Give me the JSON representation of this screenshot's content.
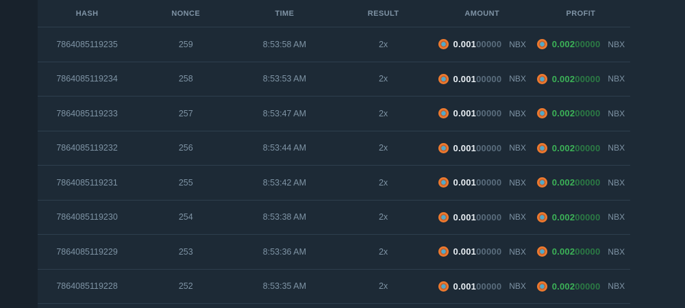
{
  "table": {
    "columns": [
      {
        "key": "hash",
        "label": "HASH"
      },
      {
        "key": "nonce",
        "label": "NONCE"
      },
      {
        "key": "time",
        "label": "TIME"
      },
      {
        "key": "result",
        "label": "RESULT"
      },
      {
        "key": "amount",
        "label": "AMOUNT"
      },
      {
        "key": "profit",
        "label": "PROFIT"
      }
    ],
    "currency": "NBX",
    "rows": [
      {
        "hash": "7864085119235",
        "nonce": "259",
        "time": "8:53:58 AM",
        "result": "2x",
        "amount_main": "0.001",
        "amount_zeros": "00000",
        "profit_main": "0.002",
        "profit_zeros": "00000"
      },
      {
        "hash": "7864085119234",
        "nonce": "258",
        "time": "8:53:53 AM",
        "result": "2x",
        "amount_main": "0.001",
        "amount_zeros": "00000",
        "profit_main": "0.002",
        "profit_zeros": "00000"
      },
      {
        "hash": "7864085119233",
        "nonce": "257",
        "time": "8:53:47 AM",
        "result": "2x",
        "amount_main": "0.001",
        "amount_zeros": "00000",
        "profit_main": "0.002",
        "profit_zeros": "00000"
      },
      {
        "hash": "7864085119232",
        "nonce": "256",
        "time": "8:53:44 AM",
        "result": "2x",
        "amount_main": "0.001",
        "amount_zeros": "00000",
        "profit_main": "0.002",
        "profit_zeros": "00000"
      },
      {
        "hash": "7864085119231",
        "nonce": "255",
        "time": "8:53:42 AM",
        "result": "2x",
        "amount_main": "0.001",
        "amount_zeros": "00000",
        "profit_main": "0.002",
        "profit_zeros": "00000"
      },
      {
        "hash": "7864085119230",
        "nonce": "254",
        "time": "8:53:38 AM",
        "result": "2x",
        "amount_main": "0.001",
        "amount_zeros": "00000",
        "profit_main": "0.002",
        "profit_zeros": "00000"
      },
      {
        "hash": "7864085119229",
        "nonce": "253",
        "time": "8:53:36 AM",
        "result": "2x",
        "amount_main": "0.001",
        "amount_zeros": "00000",
        "profit_main": "0.002",
        "profit_zeros": "00000"
      },
      {
        "hash": "7864085119228",
        "nonce": "252",
        "time": "8:53:35 AM",
        "result": "2x",
        "amount_main": "0.001",
        "amount_zeros": "00000",
        "profit_main": "0.002",
        "profit_zeros": "00000"
      }
    ]
  },
  "icons": {
    "coin": "nbx-coin-icon"
  },
  "colors": {
    "page_bg": "#18222c",
    "table_bg": "#1d2a36",
    "divider": "#2e3f4e",
    "header_text": "#7f93a5",
    "row_text": "#7e93a4",
    "amount_text": "#e8eef3",
    "dim_zeros": "#5a6d7d",
    "profit_green": "#3cb257",
    "profit_green_dim": "#2b7a44",
    "coin_orange": "#ed7a2f",
    "coin_center": "#53a9c9"
  }
}
